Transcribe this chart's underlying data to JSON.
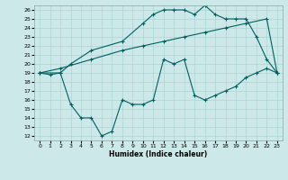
{
  "xlabel": "Humidex (Indice chaleur)",
  "background_color": "#cce8e8",
  "grid_color": "#aad4d4",
  "line_color": "#006060",
  "xlim": [
    -0.5,
    23.5
  ],
  "ylim": [
    11.5,
    26.5
  ],
  "yticks": [
    12,
    13,
    14,
    15,
    16,
    17,
    18,
    19,
    20,
    21,
    22,
    23,
    24,
    25,
    26
  ],
  "xticks": [
    0,
    1,
    2,
    3,
    4,
    5,
    6,
    7,
    8,
    9,
    10,
    11,
    12,
    13,
    14,
    15,
    16,
    17,
    18,
    19,
    20,
    21,
    22,
    23
  ],
  "line1_x": [
    0,
    1,
    2,
    3,
    5,
    8,
    10,
    11,
    12,
    13,
    14,
    15,
    16,
    17,
    18,
    19,
    20,
    21,
    22,
    23
  ],
  "line1_y": [
    19.0,
    18.8,
    19.0,
    20.0,
    21.5,
    22.5,
    24.5,
    25.5,
    26.0,
    26.0,
    26.0,
    25.5,
    26.5,
    25.5,
    25.0,
    25.0,
    25.0,
    23.0,
    20.5,
    19.0
  ],
  "line2_x": [
    0,
    2,
    5,
    8,
    10,
    12,
    14,
    16,
    18,
    20,
    22,
    23
  ],
  "line2_y": [
    19.0,
    19.5,
    20.5,
    21.5,
    22.0,
    22.5,
    23.0,
    23.5,
    24.0,
    24.5,
    25.0,
    19.0
  ],
  "line3_x": [
    0,
    2,
    3,
    4,
    5,
    6,
    7,
    8,
    9,
    10,
    11,
    12,
    13,
    14,
    15,
    16,
    17,
    18,
    19,
    20,
    21,
    22,
    23
  ],
  "line3_y": [
    19.0,
    19.0,
    15.5,
    14.0,
    14.0,
    12.0,
    12.5,
    16.0,
    15.5,
    15.5,
    16.0,
    20.5,
    20.0,
    20.5,
    16.5,
    16.0,
    16.5,
    17.0,
    17.5,
    18.5,
    19.0,
    19.5,
    19.0
  ]
}
